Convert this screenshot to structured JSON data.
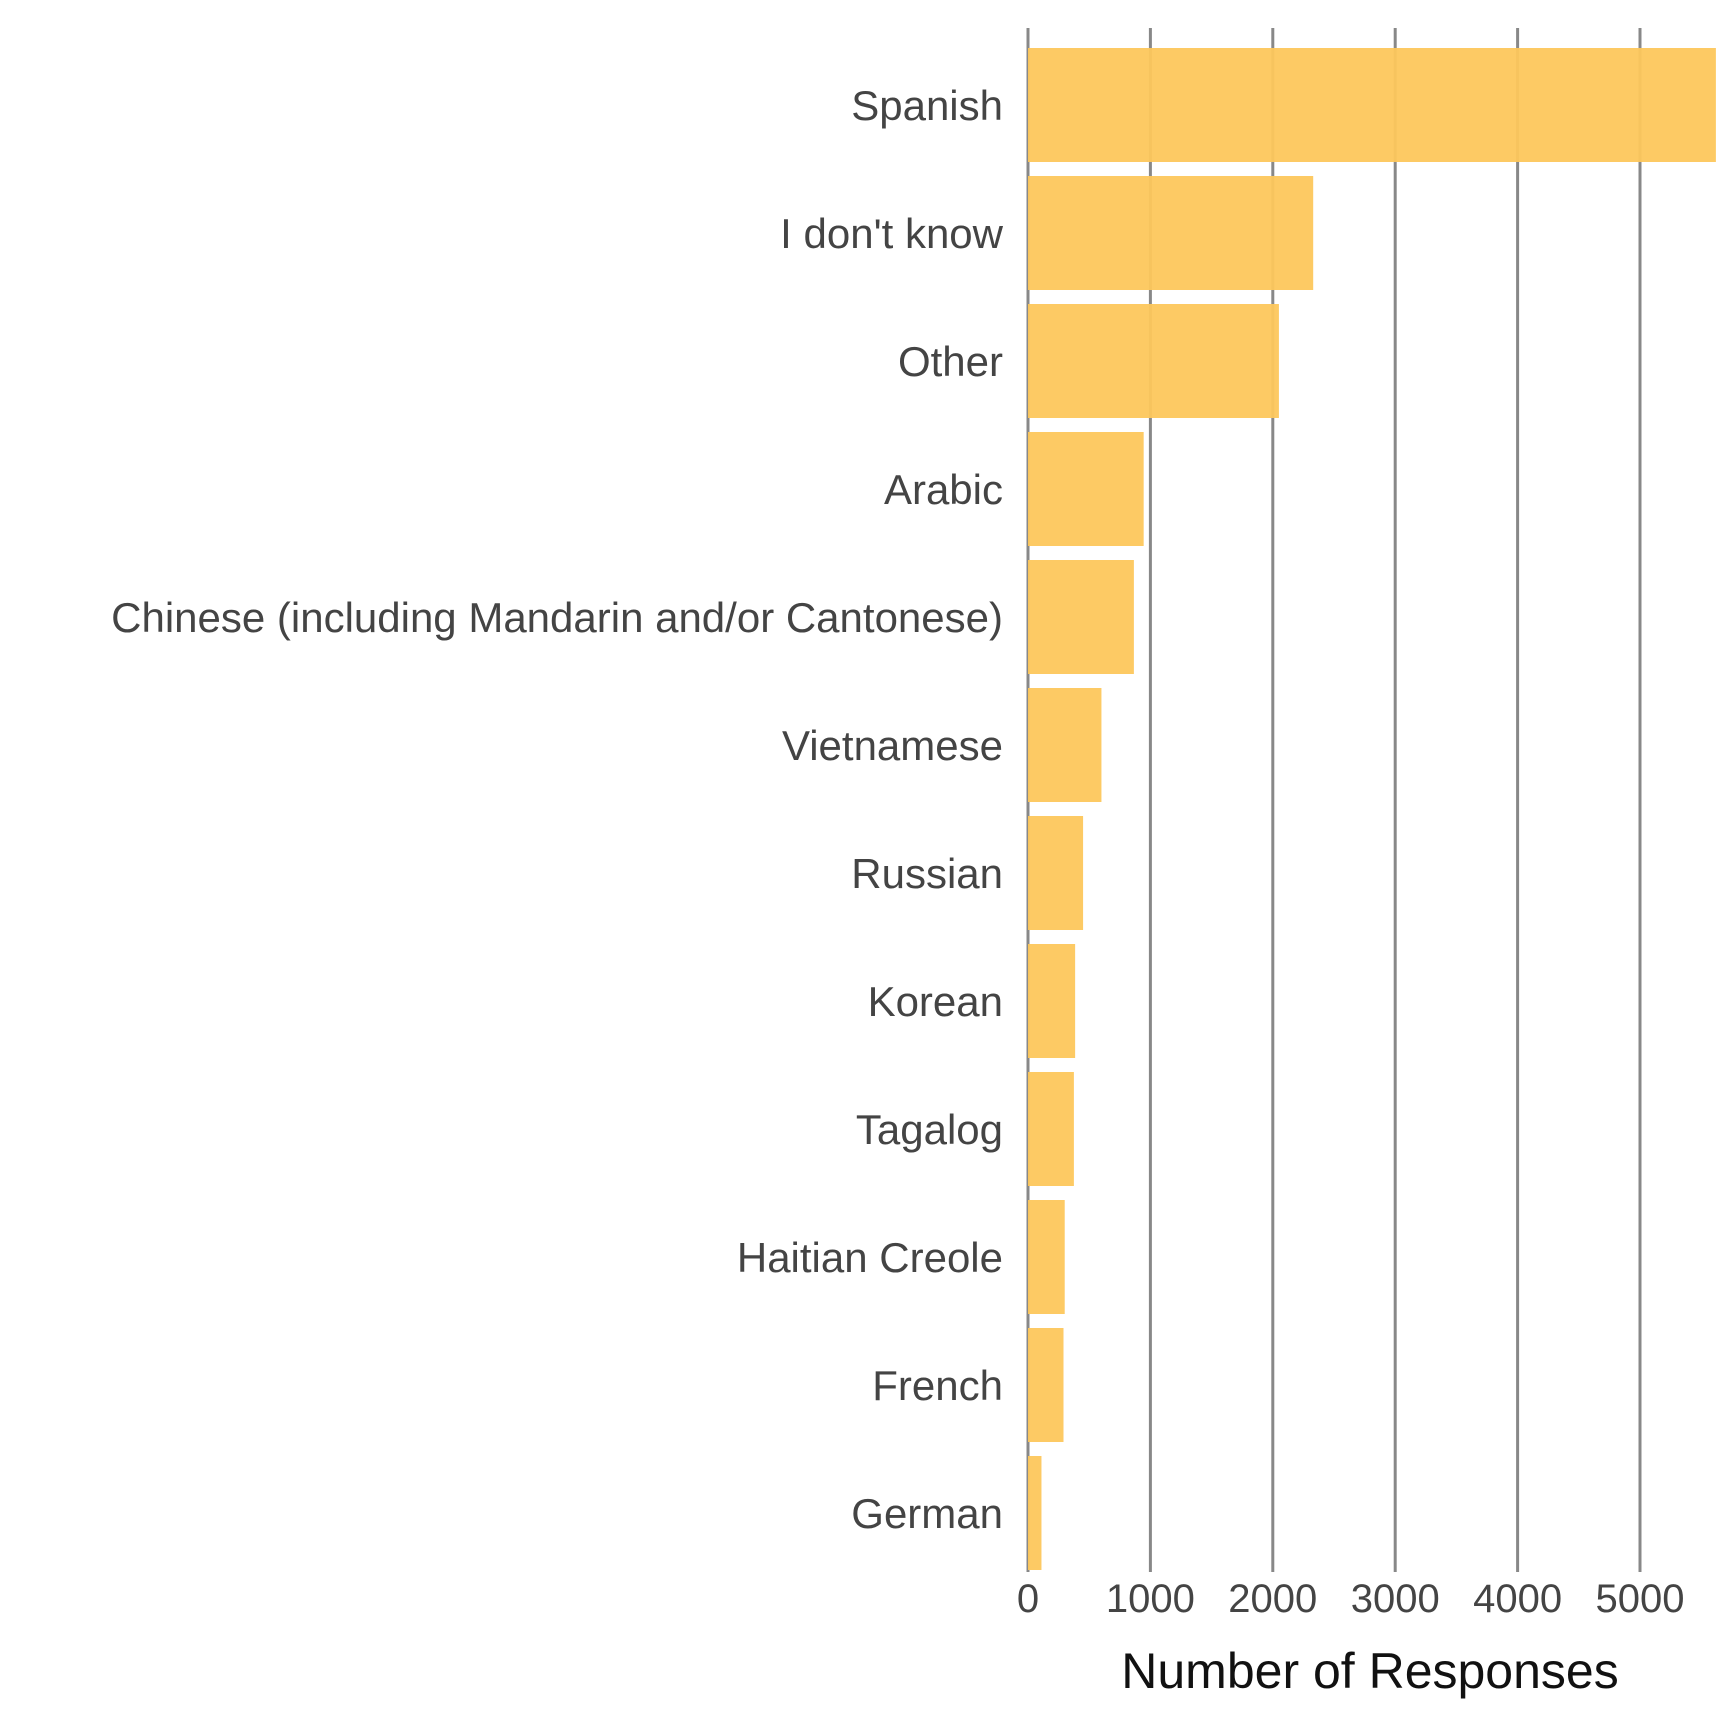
{
  "chart_data": {
    "type": "bar",
    "orientation": "horizontal",
    "categories": [
      "Spanish",
      "I don't know",
      "Other",
      "Arabic",
      "Chinese (including Mandarin and/or Cantonese)",
      "Vietnamese",
      "Russian",
      "Korean",
      "Tagalog",
      "Haitian Creole",
      "French",
      "German"
    ],
    "values": [
      5620,
      2330,
      2050,
      945,
      865,
      600,
      450,
      385,
      375,
      300,
      290,
      110
    ],
    "title": "",
    "xlabel": "Number of Responses",
    "ylabel": "",
    "xlim": [
      0,
      5620
    ],
    "xticks": [
      0,
      1000,
      2000,
      3000,
      4000,
      5000
    ],
    "xtick_labels": [
      "0",
      "1000",
      "2000",
      "3000",
      "4000",
      "5000"
    ],
    "grid": "vertical major lines",
    "legend": "none",
    "bar_color": "#FDC75C",
    "grid_color": "#888888"
  }
}
